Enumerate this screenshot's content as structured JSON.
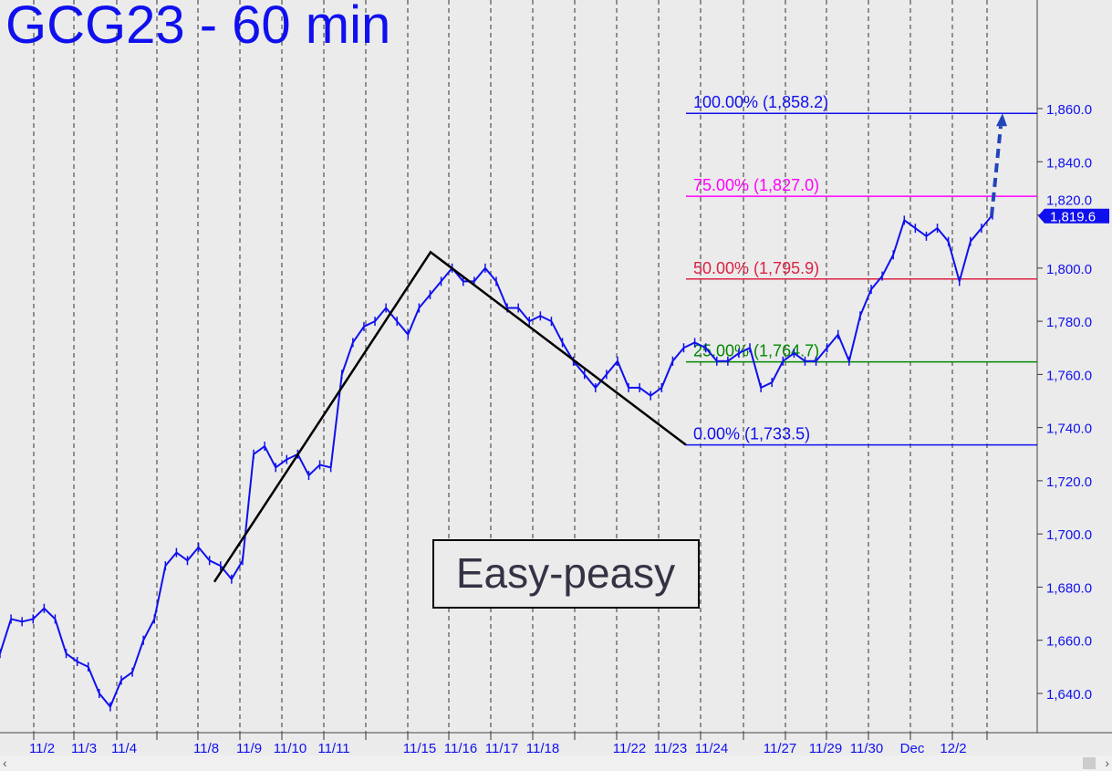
{
  "title": "GCG23 - 60 min",
  "chart_data": {
    "type": "line",
    "title": "GCG23 - 60 min",
    "ylim": [
      1627,
      1900
    ],
    "y_ticks": [
      "1,640.0",
      "1,660.0",
      "1,680.0",
      "1,700.0",
      "1,720.0",
      "1,740.0",
      "1,760.0",
      "1,780.0",
      "1,800.0",
      "1,820.0",
      "1,840.0",
      "1,860.0"
    ],
    "y_tick_values": [
      1640,
      1660,
      1680,
      1700,
      1720,
      1740,
      1760,
      1780,
      1800,
      1820,
      1840,
      1860
    ],
    "x_ticks": [
      "11/2",
      "11/3",
      "11/4",
      "11/8",
      "11/9",
      "11/10",
      "11/11",
      "11/15",
      "11/16",
      "11/17",
      "11/18",
      "11/22",
      "11/23",
      "11/24",
      "11/27",
      "11/29",
      "11/30",
      "Dec",
      "12/2"
    ],
    "grid": "vertical dashed",
    "series_color": "#1010ee",
    "last_price": "1,819.6",
    "values": [
      1655,
      1668,
      1667,
      1668,
      1672,
      1668,
      1655,
      1652,
      1650,
      1640,
      1635,
      1645,
      1648,
      1660,
      1668,
      1688,
      1693,
      1690,
      1695,
      1690,
      1688,
      1683,
      1690,
      1730,
      1733,
      1725,
      1728,
      1730,
      1722,
      1726,
      1725,
      1760,
      1772,
      1778,
      1780,
      1785,
      1780,
      1775,
      1785,
      1790,
      1795,
      1800,
      1795,
      1795,
      1800,
      1795,
      1785,
      1785,
      1780,
      1782,
      1780,
      1772,
      1765,
      1760,
      1755,
      1760,
      1765,
      1755,
      1755,
      1752,
      1755,
      1765,
      1770,
      1772,
      1770,
      1765,
      1765,
      1768,
      1770,
      1755,
      1757,
      1765,
      1768,
      1765,
      1765,
      1770,
      1775,
      1765,
      1782,
      1792,
      1797,
      1805,
      1818,
      1815,
      1812,
      1815,
      1810,
      1795,
      1810,
      1815,
      1820
    ],
    "fib_levels": [
      {
        "label": "100.00% (1,858.2)",
        "value": 1858.2,
        "color": "#1010ee"
      },
      {
        "label": "75.00% (1,827.0)",
        "value": 1827.0,
        "color": "#ff00ff"
      },
      {
        "label": "50.00% (1,795.9)",
        "value": 1795.9,
        "color": "#dd2244"
      },
      {
        "label": "25.00% (1,764.7)",
        "value": 1764.7,
        "color": "#008800"
      },
      {
        "label": "0.00% (1,733.5)",
        "value": 1733.5,
        "color": "#1010ee"
      }
    ],
    "zigzag": [
      {
        "date": "11/8",
        "value": 1682
      },
      {
        "date": "11/15",
        "value": 1806
      },
      {
        "date": "11/23",
        "value": 1733.5
      }
    ],
    "projection_target": 1858.2,
    "annotation": "Easy-peasy"
  }
}
